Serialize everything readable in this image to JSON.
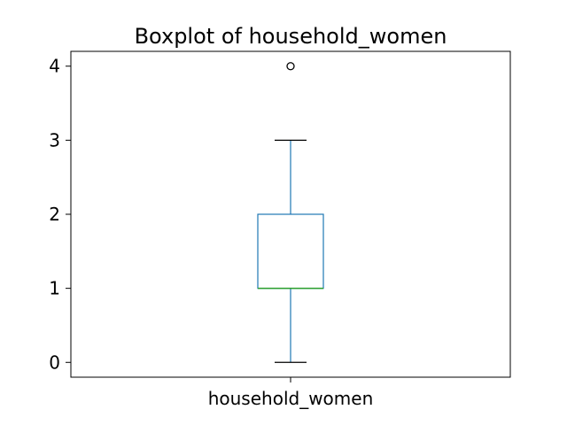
{
  "chart_data": {
    "type": "boxplot",
    "title": "Boxplot of household_women",
    "categories": [
      "household_women"
    ],
    "ylim": [
      -0.2,
      4.2
    ],
    "yticks": [
      "0",
      "1",
      "2",
      "3",
      "4"
    ],
    "grid": false,
    "series": [
      {
        "whisker_low": 0,
        "q1": 1,
        "median": 1,
        "q3": 2,
        "whisker_high": 3,
        "outliers": [
          4
        ]
      }
    ],
    "colors": {
      "box": "#1f77b4",
      "median": "#2ca02c",
      "whisker_cap": "#000000",
      "outlier": "#000000"
    }
  }
}
